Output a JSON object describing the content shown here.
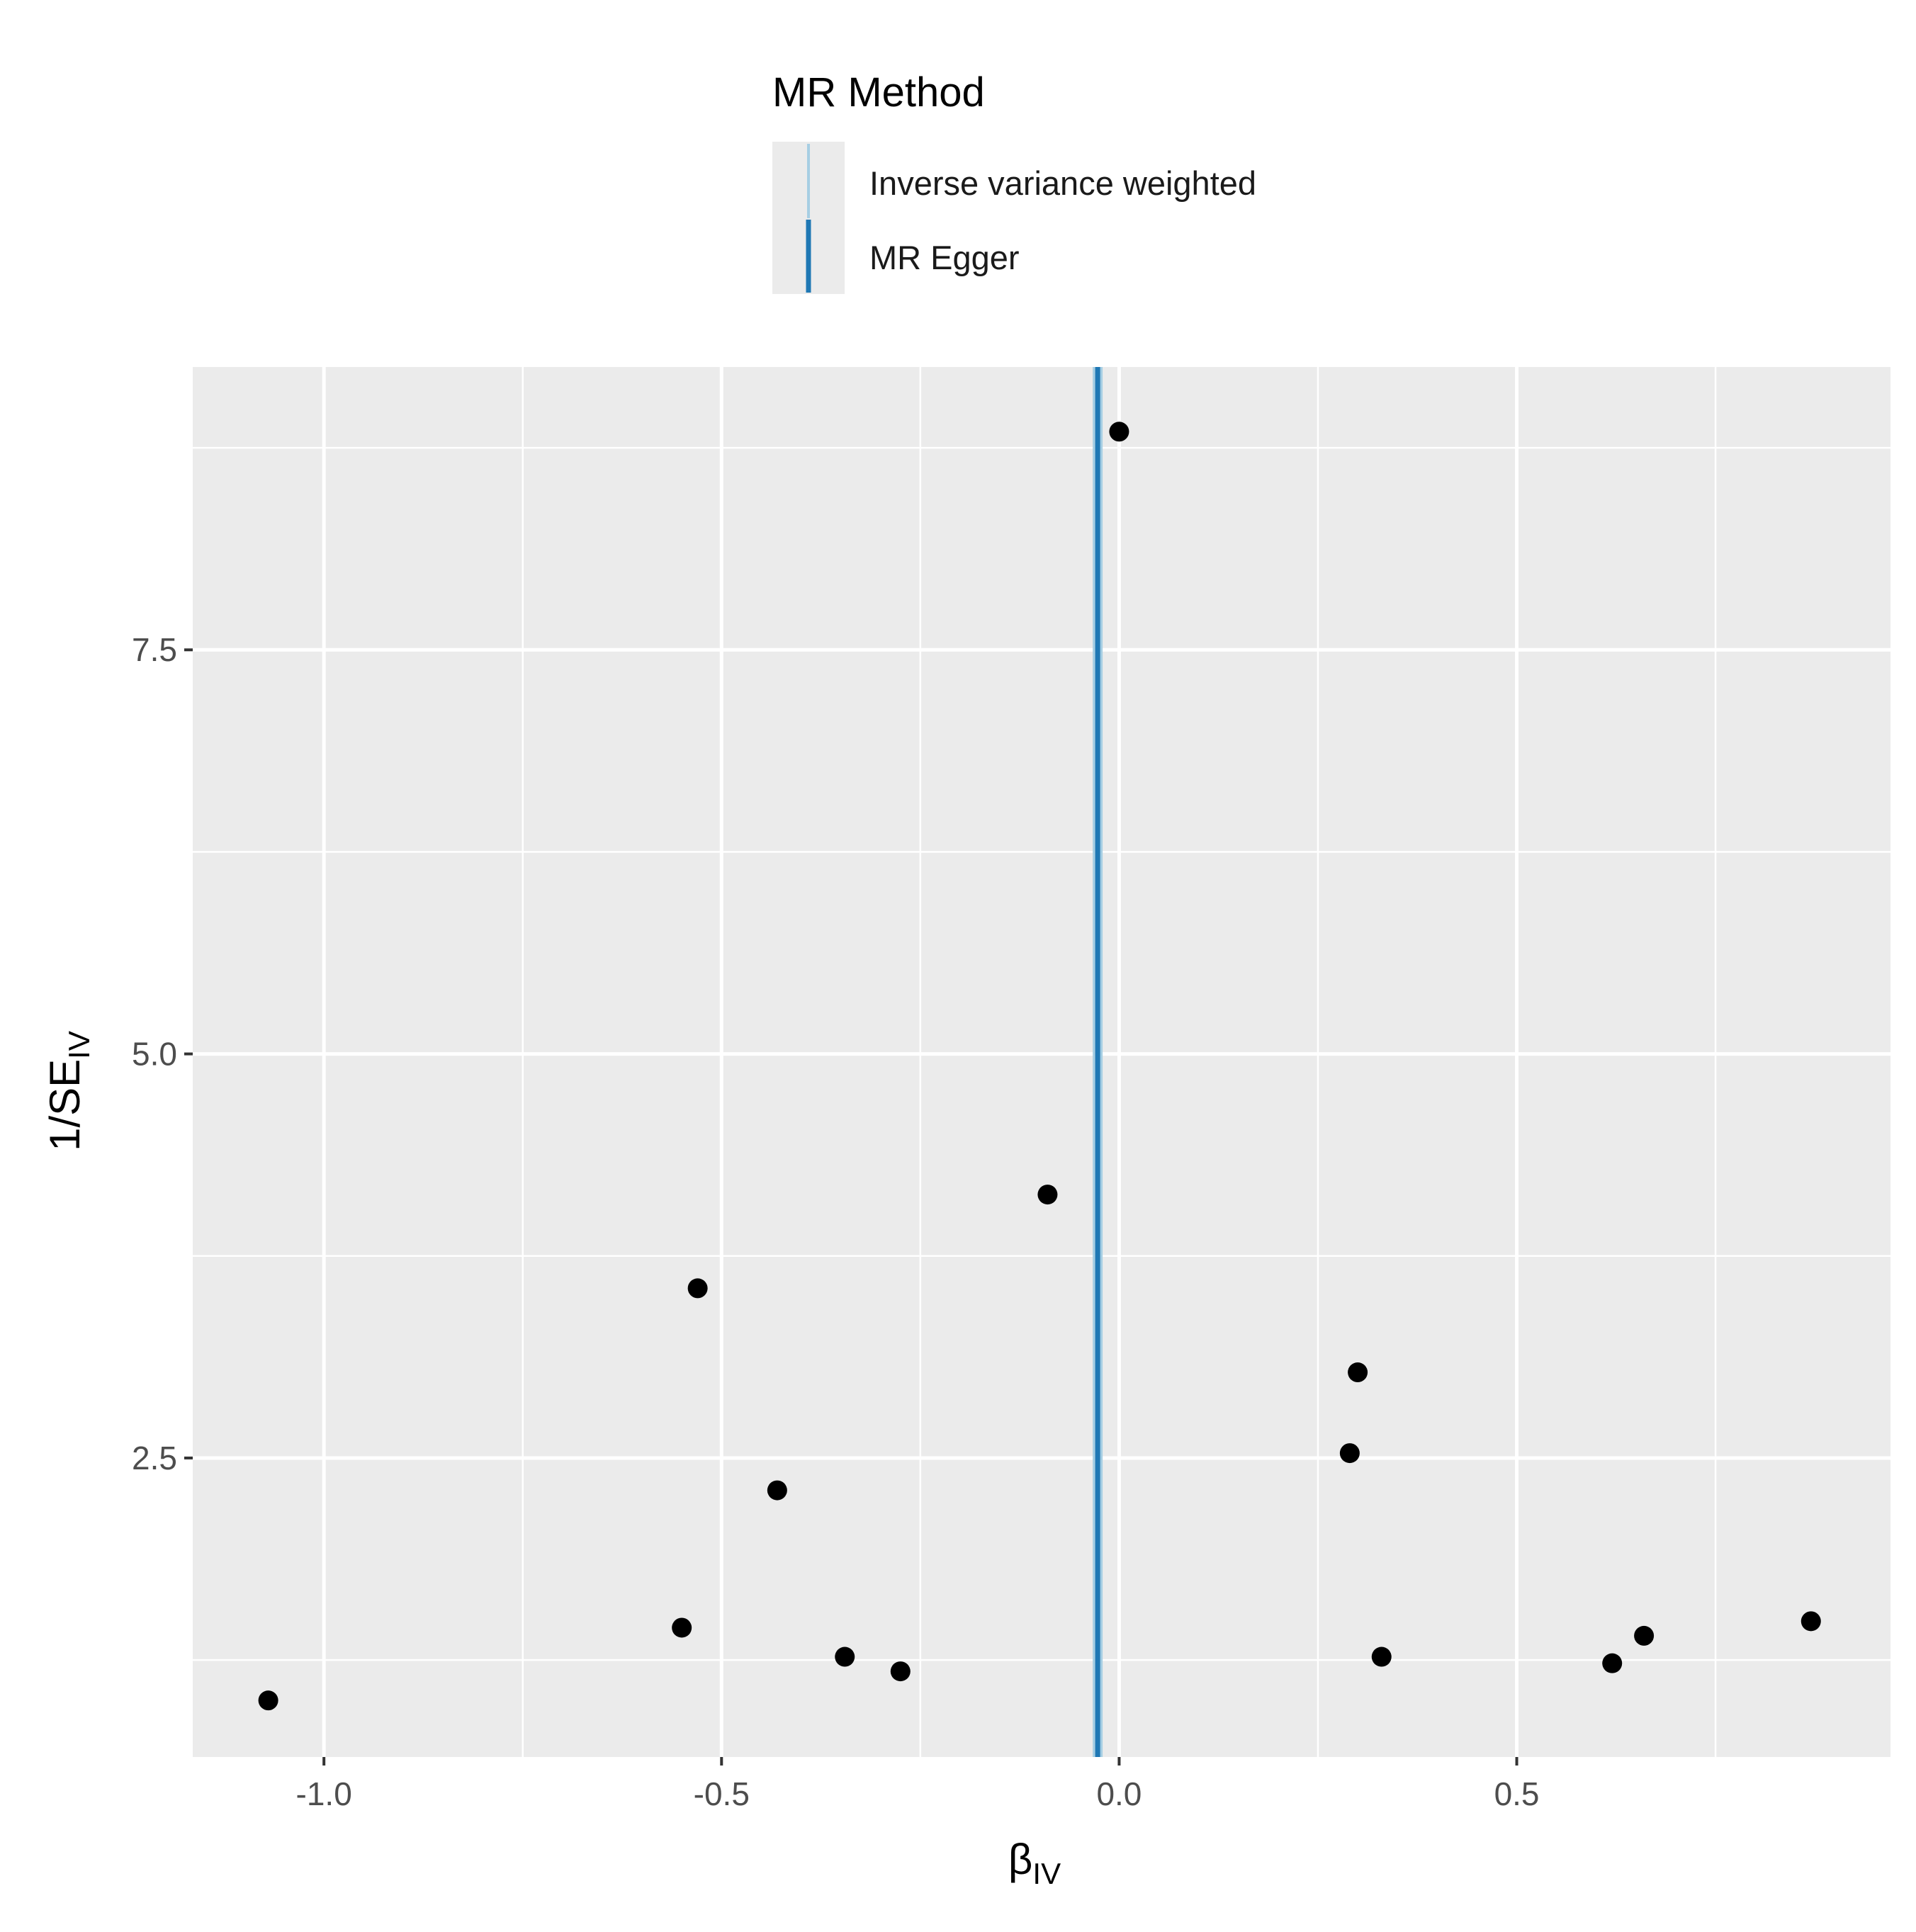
{
  "chart_data": {
    "type": "scatter",
    "xlabel": "β",
    "xlabel_sub": "IV",
    "ylabel": "1/SE",
    "ylabel_sub": "IV",
    "xlim": [
      -1.165,
      0.97
    ],
    "ylim": [
      0.65,
      9.25
    ],
    "xticks": [
      -1.0,
      -0.5,
      0.0,
      0.5
    ],
    "xtick_labels": [
      "-1.0",
      "-0.5",
      "0.0",
      "0.5"
    ],
    "yticks": [
      2.5,
      5.0,
      7.5
    ],
    "ytick_labels": [
      "2.5",
      "5.0",
      "7.5"
    ],
    "grid": true,
    "panel_background": "#ebebeb",
    "grid_color": "#ffffff",
    "point_color": "#000000",
    "points": [
      {
        "x": -1.07,
        "y": 1.0
      },
      {
        "x": -0.55,
        "y": 1.45
      },
      {
        "x": -0.53,
        "y": 3.55
      },
      {
        "x": -0.43,
        "y": 2.3
      },
      {
        "x": -0.345,
        "y": 1.27
      },
      {
        "x": -0.275,
        "y": 1.18
      },
      {
        "x": -0.09,
        "y": 4.13
      },
      {
        "x": 0.0,
        "y": 8.85
      },
      {
        "x": 0.29,
        "y": 2.53
      },
      {
        "x": 0.3,
        "y": 3.03
      },
      {
        "x": 0.33,
        "y": 1.27
      },
      {
        "x": 0.62,
        "y": 1.23
      },
      {
        "x": 0.66,
        "y": 1.4
      },
      {
        "x": 0.87,
        "y": 1.49
      }
    ],
    "lines": [
      {
        "name": "Inverse variance weighted",
        "x": -0.027,
        "color": "#a6cee3"
      },
      {
        "name": "MR Egger",
        "x": -0.027,
        "color": "#1f78b4"
      }
    ],
    "legend": {
      "title": "MR Method",
      "position": "top",
      "entries": [
        "Inverse variance weighted",
        "MR Egger"
      ]
    }
  }
}
